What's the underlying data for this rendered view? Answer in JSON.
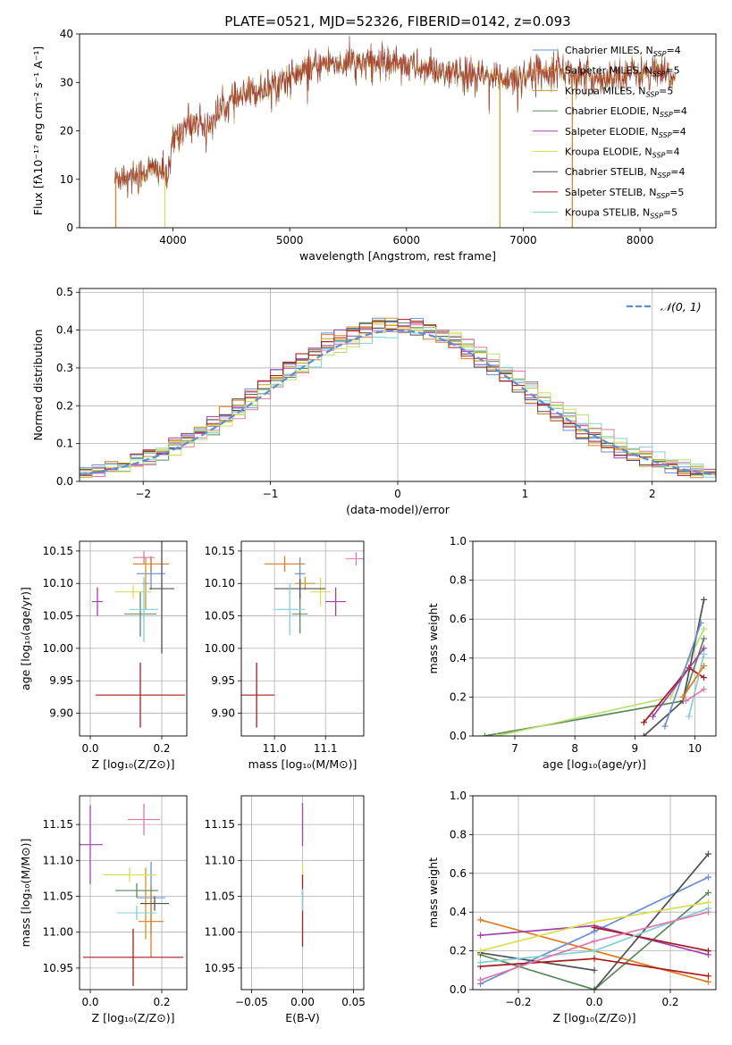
{
  "figure_title": "PLATE=0521, MJD=52326, FIBERID=0142, z=0.093",
  "colors": [
    "#6a8ed6",
    "#e07b22",
    "#c69a1f",
    "#5a8a5a",
    "#a040b0",
    "#d8e050",
    "#505050",
    "#a81c1c",
    "#80d0d8",
    "#e078b0",
    "#b8e070"
  ],
  "chart_data": [
    {
      "id": "spectrum",
      "type": "line",
      "title": "PLATE=0521, MJD=52326, FIBERID=0142, z=0.093",
      "xlabel": "wavelength [Angstrom, rest frame]",
      "ylabel": "Flux [fλ10⁻¹⁷ erg cm⁻² s⁻¹ A⁻¹]",
      "xlim": [
        3200,
        8650
      ],
      "ylim": [
        0,
        40
      ],
      "xticks": [
        4000,
        5000,
        6000,
        7000,
        8000
      ],
      "yticks": [
        0,
        10,
        20,
        30,
        40
      ],
      "grid": false,
      "legend": "top-right",
      "series": [
        {
          "name": "Chabrier MILES, NSSP=4",
          "legend_text": "Chabrier MILES, N",
          "legend_sub": "SSP",
          "legend_tail": "=4",
          "color": "#6a8ed6"
        },
        {
          "name": "Salpeter MILES, NSSP=5",
          "legend_text": "Salpeter MILES, N",
          "legend_sub": "SSP",
          "legend_tail": "=5",
          "color": "#e07b22"
        },
        {
          "name": "Kroupa MILES, NSSP=5",
          "legend_text": "Kroupa MILES, N",
          "legend_sub": "SSP",
          "legend_tail": "=5",
          "color": "#c69a1f"
        },
        {
          "name": "Chabrier ELODIE, NSSP=4",
          "legend_text": "Chabrier ELODIE, N",
          "legend_sub": "SSP",
          "legend_tail": "=4",
          "color": "#5a8a5a"
        },
        {
          "name": "Salpeter ELODIE, NSSP=4",
          "legend_text": "Salpeter ELODIE, N",
          "legend_sub": "SSP",
          "legend_tail": "=4",
          "color": "#a040b0"
        },
        {
          "name": "Kroupa ELODIE, NSSP=4",
          "legend_text": "Kroupa ELODIE, N",
          "legend_sub": "SSP",
          "legend_tail": "=4",
          "color": "#d8e050"
        },
        {
          "name": "Chabrier STELIB, NSSP=4",
          "legend_text": "Chabrier STELIB, N",
          "legend_sub": "SSP",
          "legend_tail": "=4",
          "color": "#505050"
        },
        {
          "name": "Salpeter STELIB, NSSP=5",
          "legend_text": "Salpeter STELIB, N",
          "legend_sub": "SSP",
          "legend_tail": "=5",
          "color": "#a81c1c"
        },
        {
          "name": "Kroupa STELIB, NSSP=5",
          "legend_text": "Kroupa STELIB, N",
          "legend_sub": "SSP",
          "legend_tail": "=5",
          "color": "#80d0d8"
        }
      ],
      "continuum": [
        [
          3500,
          10
        ],
        [
          3600,
          11
        ],
        [
          3700,
          11
        ],
        [
          3800,
          12
        ],
        [
          3900,
          12
        ],
        [
          3960,
          10
        ],
        [
          4000,
          18
        ],
        [
          4100,
          21
        ],
        [
          4200,
          22
        ],
        [
          4300,
          21
        ],
        [
          4400,
          24
        ],
        [
          4500,
          26
        ],
        [
          4700,
          28
        ],
        [
          4900,
          30
        ],
        [
          5000,
          31
        ],
        [
          5100,
          32
        ],
        [
          5300,
          34
        ],
        [
          5500,
          34
        ],
        [
          5700,
          34
        ],
        [
          5900,
          34.5
        ],
        [
          6100,
          33
        ],
        [
          6300,
          32
        ],
        [
          6500,
          31.5
        ],
        [
          6700,
          31
        ],
        [
          6900,
          31
        ],
        [
          7100,
          32
        ],
        [
          7300,
          33
        ],
        [
          7500,
          31
        ],
        [
          7700,
          31
        ],
        [
          7900,
          32
        ],
        [
          8100,
          32
        ],
        [
          8300,
          31
        ]
      ],
      "spikes": [
        {
          "x": 3510,
          "color": "#e07b22"
        },
        {
          "x": 3930,
          "color": "#d8e050"
        },
        {
          "x": 6800,
          "color": "#c69a1f"
        },
        {
          "x": 7420,
          "color": "#e07b22"
        }
      ]
    },
    {
      "id": "residuals",
      "type": "histogram",
      "xlabel": "(data-model)/error",
      "ylabel": "Normed distribution",
      "xlim": [
        -2.5,
        2.5
      ],
      "ylim": [
        0,
        0.51
      ],
      "xticks": [
        -2,
        -1,
        0,
        1,
        2
      ],
      "yticks": [
        0.0,
        0.1,
        0.2,
        0.3,
        0.4,
        0.5
      ],
      "grid": true,
      "legend": "top-right",
      "reference": {
        "name": "N(0,1)",
        "label": "𝒩(0, 1)",
        "color": "#5b8fd4",
        "style": "dashed"
      },
      "bins": {
        "start": -2.5,
        "width": 0.1,
        "count": 50
      }
    },
    {
      "id": "age-vs-Z",
      "type": "errorbar",
      "xlabel": "Z [log₁₀(Z/Z⊙)]",
      "ylabel": "age  [log₁₀(age/yr)]",
      "xlim": [
        -0.03,
        0.27
      ],
      "ylim": [
        9.865,
        10.165
      ],
      "xticks": [
        0.0,
        0.2
      ],
      "yticks": [
        9.9,
        9.95,
        10.0,
        10.05,
        10.1,
        10.15
      ],
      "grid": true,
      "points": [
        {
          "x": 0.17,
          "y": 10.115,
          "xerr": 0.04,
          "yerr": 0.025,
          "color": "#6a8ed6"
        },
        {
          "x": 0.17,
          "y": 10.13,
          "xerr": 0.05,
          "yerr": 0.012,
          "color": "#e07b22"
        },
        {
          "x": 0.155,
          "y": 10.1,
          "xerr": 0.01,
          "yerr": 0.04,
          "color": "#c69a1f"
        },
        {
          "x": 0.14,
          "y": 10.053,
          "xerr": 0.045,
          "yerr": 0.035,
          "color": "#5a8a5a"
        },
        {
          "x": 0.02,
          "y": 10.072,
          "xerr": 0.015,
          "yerr": 0.022,
          "color": "#a040b0"
        },
        {
          "x": 0.12,
          "y": 10.087,
          "xerr": 0.05,
          "yerr": 0.01,
          "color": "#d8e050"
        },
        {
          "x": 0.2,
          "y": 10.092,
          "xerr": 0.035,
          "yerr": 0.1,
          "color": "#505050"
        },
        {
          "x": 0.14,
          "y": 9.928,
          "xerr": 0.125,
          "yerr": 0.05,
          "color": "#a81c1c"
        },
        {
          "x": 0.15,
          "y": 10.06,
          "xerr": 0.04,
          "yerr": 0.05,
          "color": "#80d0d8"
        },
        {
          "x": 0.15,
          "y": 10.14,
          "xerr": 0.03,
          "yerr": 0.01,
          "color": "#e078b0"
        }
      ]
    },
    {
      "id": "age-vs-mass",
      "type": "errorbar",
      "xlabel": "mass [log₁₀(M/M⊙)]",
      "ylabel": "",
      "xlim": [
        10.935,
        11.175
      ],
      "ylim": [
        9.865,
        10.165
      ],
      "xticks": [
        11.0,
        11.1
      ],
      "yticks": [
        9.9,
        9.95,
        10.0,
        10.05,
        10.1,
        10.15
      ],
      "grid": true,
      "points": [
        {
          "x": 11.05,
          "y": 10.115,
          "xerr": 0.01,
          "yerr": 0.025,
          "color": "#6a8ed6"
        },
        {
          "x": 11.02,
          "y": 10.13,
          "xerr": 0.04,
          "yerr": 0.012,
          "color": "#e07b22"
        },
        {
          "x": 11.06,
          "y": 10.1,
          "xerr": 0.02,
          "yerr": 0.01,
          "color": "#c69a1f"
        },
        {
          "x": 11.05,
          "y": 10.053,
          "xerr": 0.015,
          "yerr": 0.03,
          "color": "#5a8a5a"
        },
        {
          "x": 11.12,
          "y": 10.072,
          "xerr": 0.02,
          "yerr": 0.022,
          "color": "#a040b0"
        },
        {
          "x": 11.09,
          "y": 10.087,
          "xerr": 0.02,
          "yerr": 0.022,
          "color": "#d8e050"
        },
        {
          "x": 11.05,
          "y": 10.092,
          "xerr": 0.05,
          "yerr": 0.015,
          "color": "#505050"
        },
        {
          "x": 10.965,
          "y": 9.928,
          "xerr": 0.035,
          "yerr": 0.05,
          "color": "#a81c1c"
        },
        {
          "x": 11.03,
          "y": 10.06,
          "xerr": 0.03,
          "yerr": 0.04,
          "color": "#80d0d8"
        },
        {
          "x": 11.16,
          "y": 10.138,
          "xerr": 0.02,
          "yerr": 0.01,
          "color": "#e078b0"
        }
      ]
    },
    {
      "id": "mass-weight-vs-age",
      "type": "line",
      "xlabel": "age  [log₁₀(age/yr)]",
      "ylabel": "mass weight",
      "xlim": [
        6.3,
        10.35
      ],
      "ylim": [
        0,
        1.0
      ],
      "xticks": [
        7,
        8,
        9,
        10
      ],
      "yticks": [
        0.0,
        0.2,
        0.4,
        0.6,
        0.8,
        1.0
      ],
      "grid": true,
      "series": [
        {
          "color": "#5a8a5a",
          "points": [
            [
              6.5,
              0.0
            ],
            [
              9.8,
              0.18
            ],
            [
              10.15,
              0.5
            ]
          ]
        },
        {
          "color": "#b8e070",
          "points": [
            [
              6.7,
              0.0
            ],
            [
              9.6,
              0.2
            ],
            [
              10.15,
              0.55
            ]
          ]
        },
        {
          "color": "#505050",
          "points": [
            [
              9.15,
              0.0
            ],
            [
              9.8,
              0.18
            ],
            [
              10.15,
              0.7
            ]
          ]
        },
        {
          "color": "#a81c1c",
          "points": [
            [
              9.15,
              0.07
            ],
            [
              9.9,
              0.35
            ],
            [
              10.15,
              0.3
            ]
          ]
        },
        {
          "color": "#6a8ed6",
          "points": [
            [
              9.5,
              0.05
            ],
            [
              10.1,
              0.58
            ]
          ]
        },
        {
          "color": "#a040b0",
          "points": [
            [
              9.3,
              0.1
            ],
            [
              10.15,
              0.45
            ]
          ]
        },
        {
          "color": "#80d0d8",
          "points": [
            [
              9.9,
              0.1
            ],
            [
              10.15,
              0.42
            ]
          ]
        },
        {
          "color": "#e07b22",
          "points": [
            [
              9.8,
              0.2
            ],
            [
              10.15,
              0.36
            ]
          ]
        },
        {
          "color": "#e078b0",
          "points": [
            [
              9.85,
              0.18
            ],
            [
              10.15,
              0.24
            ]
          ]
        }
      ]
    },
    {
      "id": "mass-vs-Z",
      "type": "errorbar",
      "xlabel": "Z [log₁₀(Z/Z⊙)]",
      "ylabel": "mass [log₁₀(M/M⊙)]",
      "xlim": [
        -0.03,
        0.27
      ],
      "ylim": [
        10.92,
        11.19
      ],
      "xticks": [
        0.0,
        0.2
      ],
      "yticks": [
        10.95,
        11.0,
        11.05,
        11.1,
        11.15
      ],
      "grid": true,
      "points": [
        {
          "x": 0.17,
          "y": 11.048,
          "xerr": 0.04,
          "yerr": 0.05,
          "color": "#6a8ed6"
        },
        {
          "x": 0.17,
          "y": 11.015,
          "xerr": 0.035,
          "yerr": 0.05,
          "color": "#e07b22"
        },
        {
          "x": 0.155,
          "y": 11.04,
          "xerr": 0.01,
          "yerr": 0.05,
          "color": "#c69a1f"
        },
        {
          "x": 0.13,
          "y": 11.058,
          "xerr": 0.06,
          "yerr": 0.01,
          "color": "#5a8a5a"
        },
        {
          "x": 0.0,
          "y": 11.122,
          "xerr": 0.035,
          "yerr": 0.055,
          "color": "#a040b0"
        },
        {
          "x": 0.11,
          "y": 11.08,
          "xerr": 0.075,
          "yerr": 0.01,
          "color": "#d8e050"
        },
        {
          "x": 0.18,
          "y": 11.04,
          "xerr": 0.04,
          "yerr": 0.01,
          "color": "#505050"
        },
        {
          "x": 0.12,
          "y": 10.965,
          "xerr": 0.14,
          "yerr": 0.04,
          "color": "#a81c1c"
        },
        {
          "x": 0.13,
          "y": 11.027,
          "xerr": 0.055,
          "yerr": 0.01,
          "color": "#80d0d8"
        },
        {
          "x": 0.15,
          "y": 11.157,
          "xerr": 0.045,
          "yerr": 0.022,
          "color": "#e078b0"
        }
      ]
    },
    {
      "id": "mass-vs-ebv",
      "type": "errorbar",
      "xlabel": "E(B-V)",
      "ylabel": "",
      "xlim": [
        -0.06,
        0.06
      ],
      "ylim": [
        10.92,
        11.19
      ],
      "xticks": [
        -0.05,
        0.0,
        0.05
      ],
      "yticks": [
        10.95,
        11.0,
        11.05,
        11.1,
        11.15
      ],
      "grid": true,
      "points": [
        {
          "x": 0.0,
          "y": 11.15,
          "xerr": 0.0,
          "yerr": 0.03,
          "color": "#a040b0"
        },
        {
          "x": 0.0,
          "y": 11.08,
          "xerr": 0.0,
          "yerr": 0.015,
          "color": "#d8e050"
        },
        {
          "x": 0.0,
          "y": 11.03,
          "xerr": 0.0,
          "yerr": 0.05,
          "color": "#a81c1c"
        },
        {
          "x": 0.0,
          "y": 11.045,
          "xerr": 0.0,
          "yerr": 0.015,
          "color": "#80d0d8"
        }
      ]
    },
    {
      "id": "mass-weight-vs-Z",
      "type": "line",
      "xlabel": "Z [log₁₀(Z/Z⊙)]",
      "ylabel": "mass weight",
      "xlim": [
        -0.32,
        0.32
      ],
      "ylim": [
        0,
        1.0
      ],
      "xticks": [
        -0.2,
        0.0,
        0.2
      ],
      "yticks": [
        0.0,
        0.2,
        0.4,
        0.6,
        0.8,
        1.0
      ],
      "grid": true,
      "series": [
        {
          "color": "#e07b22",
          "points": [
            [
              -0.3,
              0.36
            ],
            [
              0.3,
              0.04
            ]
          ]
        },
        {
          "color": "#6a8ed6",
          "points": [
            [
              -0.3,
              0.03
            ],
            [
              0.0,
              0.3
            ],
            [
              0.3,
              0.58
            ]
          ]
        },
        {
          "color": "#a040b0",
          "points": [
            [
              -0.3,
              0.28
            ],
            [
              0.0,
              0.33
            ],
            [
              0.3,
              0.18
            ]
          ]
        },
        {
          "color": "#5a8a5a",
          "points": [
            [
              -0.3,
              0.18
            ],
            [
              0.0,
              0.0
            ],
            [
              0.3,
              0.5
            ]
          ]
        },
        {
          "color": "#505050",
          "points": [
            [
              -0.3,
              0.19
            ],
            [
              0.0,
              0.1
            ]
          ]
        },
        {
          "color": "#505050",
          "points": [
            [
              0.0,
              0.0
            ],
            [
              0.3,
              0.7
            ]
          ]
        },
        {
          "color": "#a81c1c",
          "points": [
            [
              -0.3,
              0.12
            ],
            [
              0.0,
              0.16
            ],
            [
              0.3,
              0.07
            ]
          ]
        },
        {
          "color": "#a81c1c",
          "points": [
            [
              0.0,
              0.32
            ],
            [
              0.3,
              0.2
            ]
          ]
        },
        {
          "color": "#d8e050",
          "points": [
            [
              -0.3,
              0.2
            ],
            [
              0.0,
              0.35
            ],
            [
              0.3,
              0.45
            ]
          ]
        },
        {
          "color": "#80d0d8",
          "points": [
            [
              -0.3,
              0.14
            ],
            [
              0.0,
              0.2
            ],
            [
              0.3,
              0.42
            ]
          ]
        },
        {
          "color": "#e078b0",
          "points": [
            [
              -0.3,
              0.05
            ],
            [
              0.0,
              0.25
            ],
            [
              0.3,
              0.4
            ]
          ]
        }
      ]
    }
  ]
}
